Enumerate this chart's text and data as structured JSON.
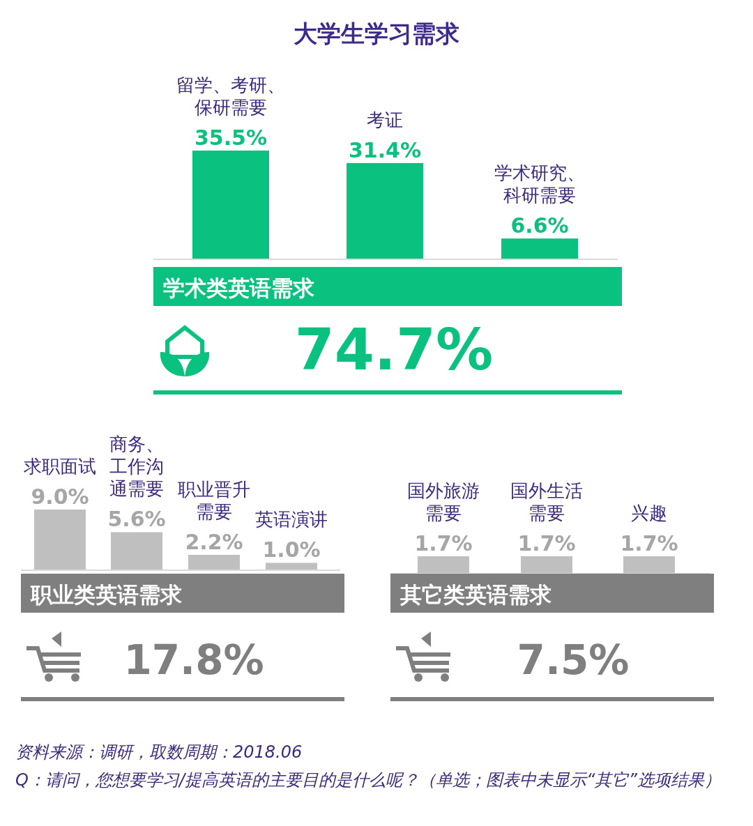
{
  "chart_data": [
    {
      "type": "bar",
      "title": "大学生学习需求",
      "subtitle": "学术类英语需求",
      "categories": [
        "留学、考研、保研需要",
        "考证",
        "学术研究、科研需要"
      ],
      "values": [
        35.5,
        31.4,
        6.6
      ],
      "value_labels": [
        "35.5%",
        "31.4%",
        "6.6%"
      ],
      "color": "#0bc17f",
      "annotations": [
        "74.7%"
      ]
    },
    {
      "type": "bar",
      "subtitle": "职业类英语需求",
      "categories": [
        "求职面试",
        "商务、工作沟通需要",
        "职业晋升需要",
        "英语演讲"
      ],
      "values": [
        9.0,
        5.6,
        2.2,
        1.0
      ],
      "value_labels": [
        "9.0%",
        "5.6%",
        "2.2%",
        "1.0%"
      ],
      "color": "#bfbfbf",
      "annotations": [
        "17.8%"
      ]
    },
    {
      "type": "bar",
      "subtitle": "其它类英语需求",
      "categories": [
        "国外旅游需要",
        "国外生活需要",
        "兴趣"
      ],
      "values": [
        1.7,
        1.7,
        1.7
      ],
      "value_labels": [
        "1.7%",
        "1.7%",
        "1.7%"
      ],
      "color": "#bfbfbf",
      "annotations": [
        "7.5%",
        "资料来源：调研，取数周期：2018.06",
        "Q：请问，您想要学习/提高英语的主要目的是什么呢？（单选；图表中未显示“其它”选项结果）"
      ]
    }
  ]
}
